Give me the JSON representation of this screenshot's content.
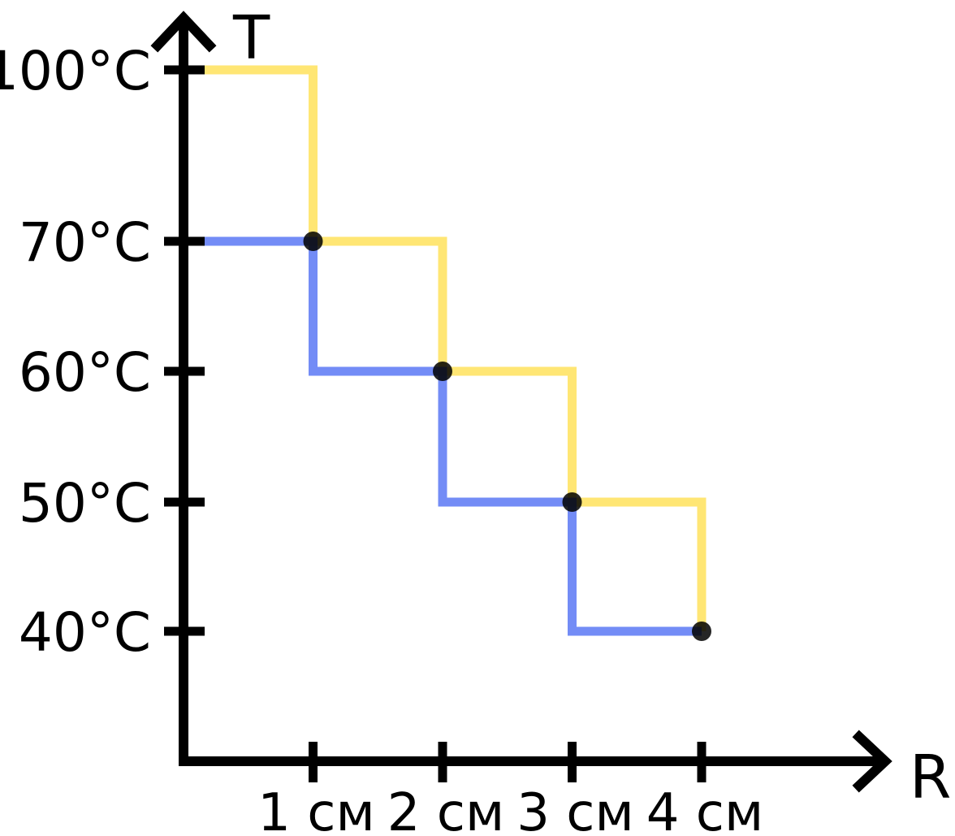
{
  "chart_data": {
    "type": "line",
    "xlabel": "R",
    "ylabel": "T",
    "x_ticks": [
      {
        "value": 1,
        "label": "1 см"
      },
      {
        "value": 2,
        "label": "2 см"
      },
      {
        "value": 3,
        "label": "3 см"
      },
      {
        "value": 4,
        "label": "4 см"
      }
    ],
    "y_ticks": [
      {
        "value": 100,
        "label": "100°C"
      },
      {
        "value": 70,
        "label": "70°C"
      },
      {
        "value": 60,
        "label": "60°C"
      },
      {
        "value": 50,
        "label": "50°C"
      },
      {
        "value": 40,
        "label": "40°C"
      }
    ],
    "series": [
      {
        "color": "#ffe25c",
        "step": "upper",
        "points": [
          [
            0,
            100
          ],
          [
            1,
            100
          ],
          [
            1,
            70
          ],
          [
            2,
            70
          ],
          [
            2,
            60
          ],
          [
            3,
            60
          ],
          [
            3,
            50
          ],
          [
            4,
            50
          ],
          [
            4,
            40
          ]
        ]
      },
      {
        "color": "#5a78f5",
        "step": "lower",
        "points": [
          [
            0,
            70
          ],
          [
            1,
            70
          ],
          [
            1,
            60
          ],
          [
            2,
            60
          ],
          [
            2,
            50
          ],
          [
            3,
            50
          ],
          [
            3,
            40
          ],
          [
            4,
            40
          ]
        ]
      }
    ],
    "markers": [
      [
        1,
        70
      ],
      [
        2,
        60
      ],
      [
        3,
        50
      ],
      [
        4,
        40
      ]
    ],
    "axis_color": "#000000",
    "marker_color": "#000000"
  }
}
